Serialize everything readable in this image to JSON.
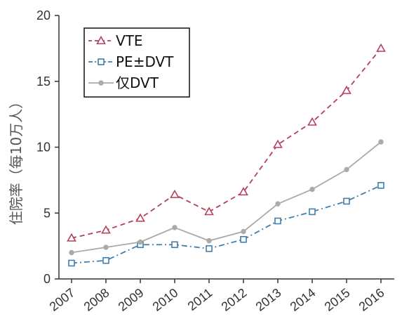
{
  "chart_data": {
    "type": "line",
    "xlabel": "",
    "ylabel": "住院率（每10万人）",
    "categories": [
      "2007",
      "2008",
      "2009",
      "2010",
      "2011",
      "2012",
      "2013",
      "2014",
      "2015",
      "2016"
    ],
    "y_ticks": [
      "0",
      "5",
      "10",
      "15",
      "20"
    ],
    "ylim": [
      0,
      20
    ],
    "grid": false,
    "legend_position": "top-left",
    "series": [
      {
        "name": "VTE",
        "marker": "triangle",
        "line_style": "dashed",
        "color": "#b5405c",
        "values": [
          3.1,
          3.7,
          4.6,
          6.4,
          5.1,
          6.6,
          10.2,
          11.9,
          14.3,
          17.5
        ]
      },
      {
        "name": "PE±DVT",
        "marker": "square",
        "line_style": "dash-dot",
        "color": "#3f7fae",
        "values": [
          1.2,
          1.4,
          2.6,
          2.6,
          2.3,
          3.0,
          4.4,
          5.1,
          5.9,
          7.1
        ]
      },
      {
        "name": "仅DVT",
        "marker": "circle",
        "line_style": "solid",
        "color": "#aaaaaa",
        "values": [
          2.0,
          2.4,
          2.8,
          3.9,
          2.9,
          3.6,
          5.7,
          6.8,
          8.3,
          10.4
        ]
      }
    ]
  }
}
